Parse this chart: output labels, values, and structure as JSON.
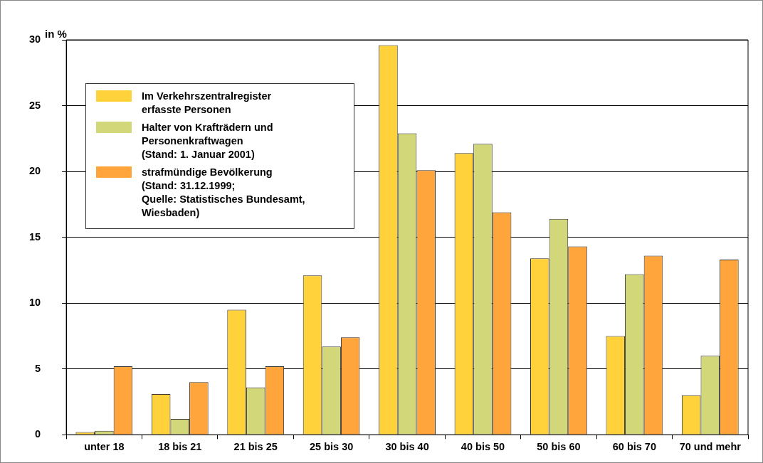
{
  "chart_data": {
    "type": "bar",
    "ylabel": "in %",
    "categories": [
      "unter 18",
      "18 bis 21",
      "21 bis 25",
      "25 bis 30",
      "30 bis 40",
      "40 bis 50",
      "50 bis 60",
      "60 bis 70",
      "70 und mehr"
    ],
    "series": [
      {
        "name": "Im Verkehrszentralregister\nerfasste Personen",
        "color": "#ffd23c",
        "values": [
          0.2,
          3.1,
          9.5,
          12.1,
          29.6,
          21.4,
          13.4,
          7.5,
          3.0
        ]
      },
      {
        "name": "Halter von Krafträdern und\nPersonenkraftwagen\n(Stand: 1. Januar 2001)",
        "color": "#d2d77a",
        "values": [
          0.3,
          1.2,
          3.6,
          6.7,
          22.9,
          22.1,
          16.4,
          12.2,
          6.0
        ]
      },
      {
        "name": "strafmündige Bevölkerung\n(Stand: 31.12.1999;\nQuelle: Statistisches Bundesamt,\nWiesbaden)",
        "color": "#ffa53c",
        "values": [
          5.2,
          4.0,
          5.2,
          7.4,
          20.1,
          16.9,
          14.3,
          13.6,
          13.3
        ]
      }
    ],
    "ylim": [
      0,
      30
    ],
    "yticks": [
      0,
      5,
      10,
      15,
      20,
      25,
      30
    ],
    "grid": "y",
    "legend": "top left"
  }
}
